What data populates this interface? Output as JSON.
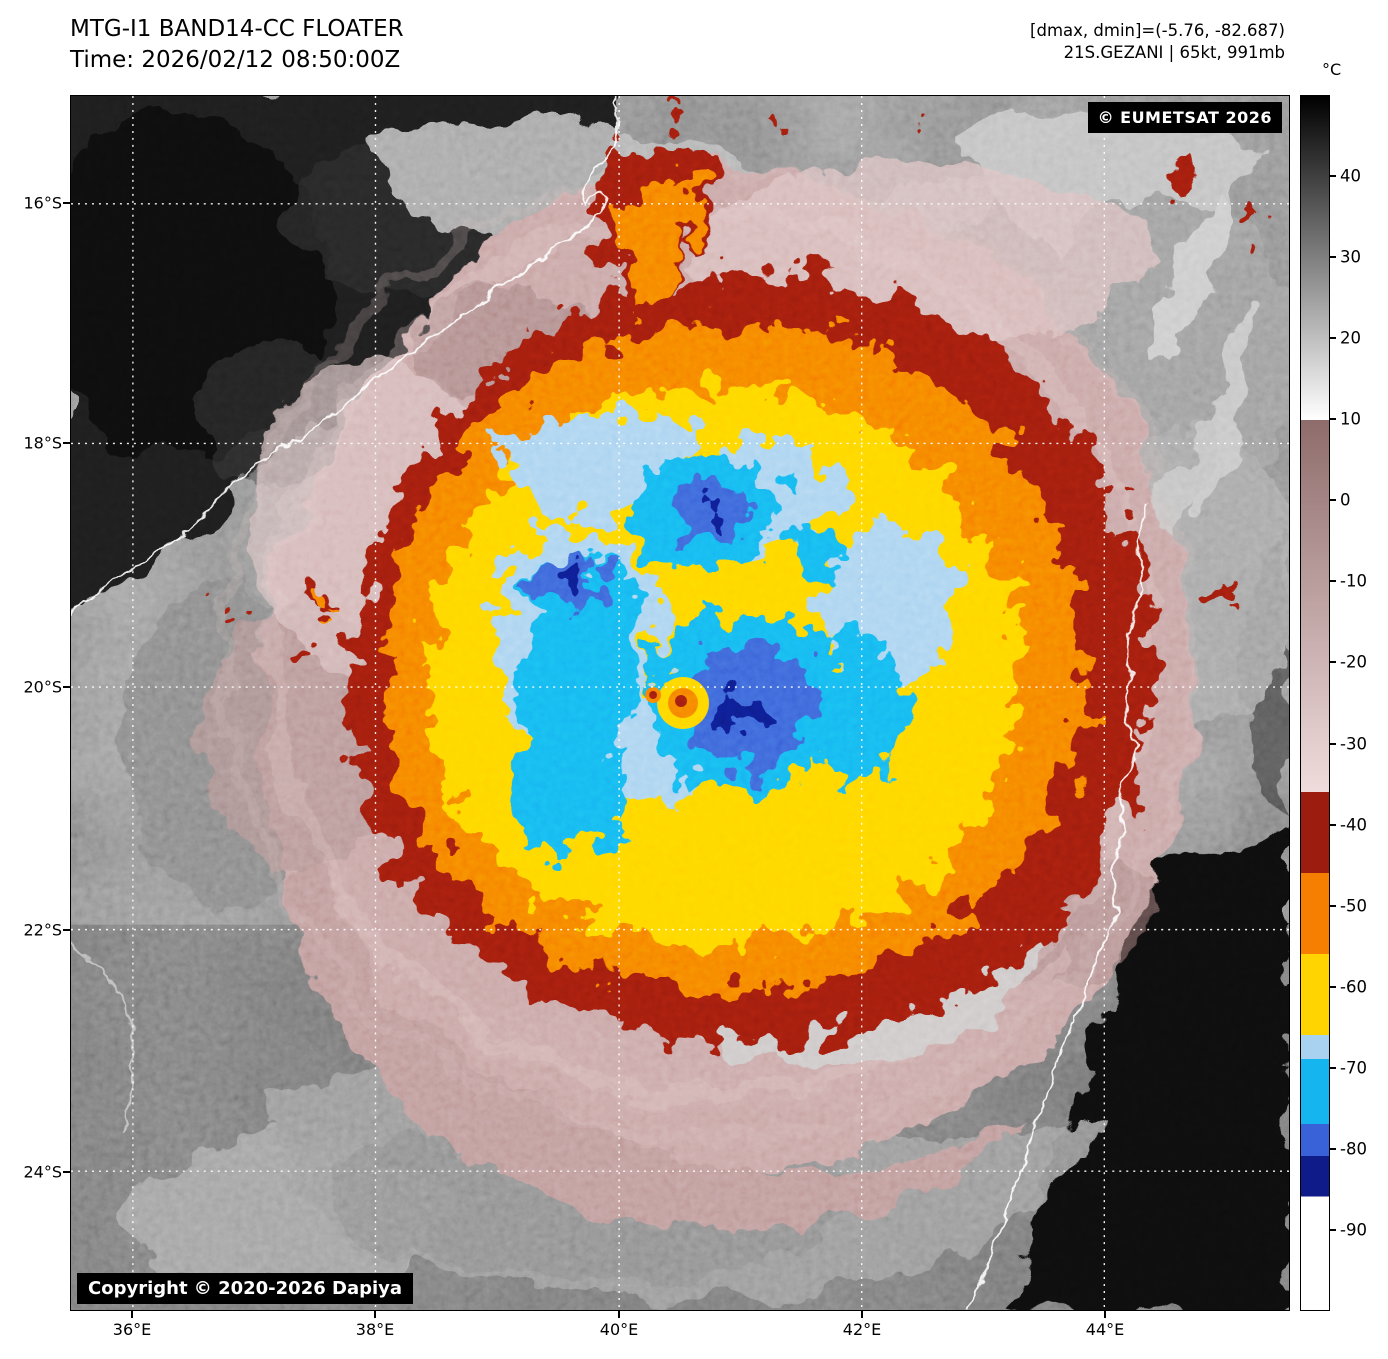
{
  "header": {
    "title": "MTG-I1 BAND14-CC FLOATER",
    "time_line": "Time: 2026/02/12 08:50:00Z",
    "dmax_dmin": "[dmax, dmin]=(-5.76, -82.687)",
    "storm_info": "21S.GEZANI | 65kt, 991mb"
  },
  "map": {
    "eumetsat_credit": "© EUMETSAT 2026",
    "copyright": "Copyright © 2020-2026 Dapiya",
    "lat_labels": [
      "16°S",
      "18°S",
      "20°S",
      "22°S",
      "24°S"
    ],
    "lon_labels": [
      "36°E",
      "38°E",
      "40°E",
      "42°E",
      "44°E"
    ]
  },
  "colorbar": {
    "unit": "°C",
    "scale_max": 50,
    "scale_min": -100,
    "tick_values": [
      40,
      30,
      20,
      10,
      0,
      -10,
      -20,
      -30,
      -40,
      -50,
      -60,
      -70,
      -80,
      -90
    ],
    "segments": [
      {
        "from": 50,
        "to": 10,
        "color_start": "#000000",
        "color_end": "#ffffff"
      },
      {
        "from": 10,
        "to": -36,
        "color_start": "#8f6c6c",
        "color_end": "#f0dcdc"
      },
      {
        "from": -36,
        "to": -46,
        "color_start": "#9c1c10",
        "color_end": "#9c1c10"
      },
      {
        "from": -46,
        "to": -56,
        "color_start": "#f67e00",
        "color_end": "#f67e00"
      },
      {
        "from": -56,
        "to": -66,
        "color_start": "#ffd400",
        "color_end": "#ffd400"
      },
      {
        "from": -66,
        "to": -69,
        "color_start": "#a8d2f0",
        "color_end": "#a8d2f0"
      },
      {
        "from": -69,
        "to": -77,
        "color_start": "#15b5f0",
        "color_end": "#15b5f0"
      },
      {
        "from": -77,
        "to": -81,
        "color_start": "#3a62d8",
        "color_end": "#3a62d8"
      },
      {
        "from": -81,
        "to": -86,
        "color_start": "#101b8a",
        "color_end": "#101b8a"
      },
      {
        "from": -86,
        "to": -100,
        "color_start": "#ffffff",
        "color_end": "#ffffff"
      }
    ]
  }
}
